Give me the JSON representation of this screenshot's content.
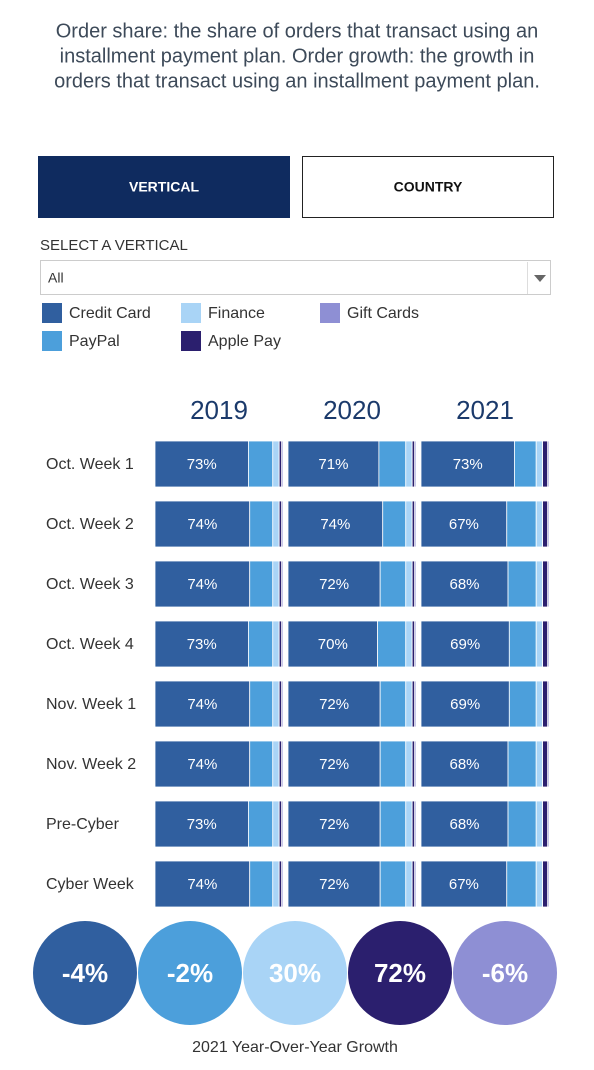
{
  "header": {
    "description": [
      "Order share: the share of orders that transact using an",
      "installment payment plan. Order growth: the growth in",
      "orders that transact using an installment payment plan."
    ]
  },
  "tabs": [
    "VERTICAL",
    "COUNTRY"
  ],
  "filter": {
    "label": "SELECT A VERTICAL",
    "value": "All"
  },
  "chart_data": {
    "type": "bar",
    "orientation": "horizontal",
    "stacked": true,
    "xlim": [
      0,
      100
    ],
    "panels": [
      "2019",
      "2020",
      "2021"
    ],
    "categories": [
      "Oct. Week 1",
      "Oct. Week 2",
      "Oct. Week 3",
      "Oct. Week 4",
      "Nov. Week 1",
      "Nov. Week 2",
      "Pre-Cyber",
      "Cyber Week"
    ],
    "series": [
      {
        "name": "Credit Card",
        "color": "#305f9f",
        "values": [
          [
            73,
            74,
            74,
            73,
            74,
            74,
            73,
            74
          ],
          [
            71,
            74,
            72,
            70,
            72,
            72,
            72,
            72
          ],
          [
            73,
            67,
            68,
            69,
            69,
            68,
            68,
            67
          ]
        ],
        "value_labels": [
          [
            "73%",
            "74%",
            "74%",
            "73%",
            "74%",
            "74%",
            "73%",
            "74%"
          ],
          [
            "71%",
            "74%",
            "72%",
            "70%",
            "72%",
            "72%",
            "72%",
            "72%"
          ],
          [
            "73%",
            "67%",
            "68%",
            "69%",
            "69%",
            "68%",
            "68%",
            "67%"
          ]
        ]
      },
      {
        "name": "PayPal",
        "color": "#4c9fdb",
        "values": [
          [
            19,
            18,
            18,
            19,
            18,
            18,
            19,
            18
          ],
          [
            21,
            18,
            20,
            22,
            20,
            20,
            20,
            20
          ],
          [
            17,
            23,
            22,
            21,
            21,
            22,
            22,
            23
          ]
        ]
      },
      {
        "name": "Finance",
        "color": "#a9d4f6",
        "values": [
          [
            5,
            5,
            5,
            5,
            5,
            5,
            5,
            5
          ],
          [
            5,
            5,
            5,
            5,
            5,
            5,
            5,
            5
          ],
          [
            5,
            5,
            5,
            5,
            5,
            5,
            5,
            5
          ]
        ]
      },
      {
        "name": "Apple Pay",
        "color": "#2b1f6e",
        "values": [
          [
            2,
            2,
            2,
            2,
            2,
            2,
            2,
            2
          ],
          [
            2,
            2,
            2,
            2,
            2,
            2,
            2,
            2
          ],
          [
            4,
            4,
            4,
            4,
            4,
            4,
            4,
            4
          ]
        ]
      },
      {
        "name": "Gift Cards",
        "color": "#8e8fd4",
        "values": [
          [
            1,
            1,
            1,
            1,
            1,
            1,
            1,
            1
          ],
          [
            1,
            1,
            1,
            1,
            1,
            1,
            1,
            1
          ],
          [
            1,
            1,
            1,
            1,
            1,
            1,
            1,
            1
          ]
        ]
      }
    ],
    "growth": {
      "title": "2021 Year-Over-Year Growth",
      "values": [
        -4,
        -2,
        30,
        72,
        -6
      ],
      "value_labels": [
        "-4%",
        "-2%",
        "30%",
        "72%",
        "-6%"
      ]
    }
  }
}
